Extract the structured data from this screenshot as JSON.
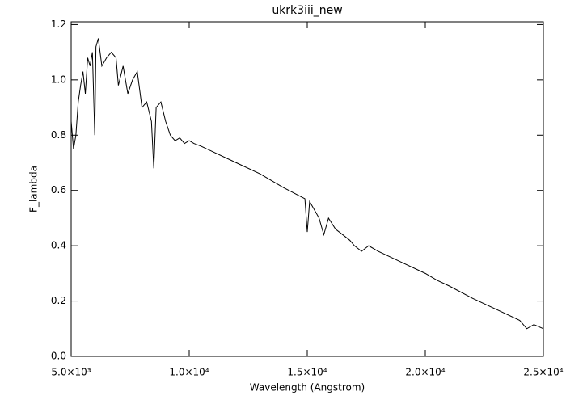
{
  "chart_data": {
    "type": "line",
    "title": "ukrk3iii_new",
    "xlabel": "Wavelength (Angstrom)",
    "ylabel": "F_lambda",
    "xlim": [
      5000,
      25000
    ],
    "xticks": [
      {
        "value": 5000,
        "label": "5.0×10³"
      },
      {
        "value": 10000,
        "label": "1.0×10⁴"
      },
      {
        "value": 15000,
        "label": "1.5×10⁴"
      },
      {
        "value": 20000,
        "label": "2.0×10⁴"
      },
      {
        "value": 25000,
        "label": "2.5×10⁴"
      }
    ],
    "ylim": [
      0,
      1.21
    ],
    "yticks": [
      {
        "value": 0,
        "label": "0.0"
      },
      0.2,
      0.4,
      0.6,
      0.8,
      {
        "value": 1,
        "label": "1.0"
      },
      1.2
    ],
    "color": "#000000",
    "x": [
      5000,
      5100,
      5200,
      5300,
      5400,
      5500,
      5600,
      5700,
      5800,
      5900,
      6000,
      6050,
      6150,
      6300,
      6500,
      6700,
      6900,
      7000,
      7200,
      7400,
      7600,
      7800,
      8000,
      8200,
      8400,
      8500,
      8600,
      8800,
      9000,
      9200,
      9400,
      9600,
      9800,
      10000,
      10200,
      10500,
      11000,
      12000,
      13000,
      14000,
      14900,
      15000,
      15100,
      15300,
      15500,
      15700,
      15900,
      16200,
      16500,
      16800,
      17000,
      17300,
      17600,
      18000,
      19000,
      20000,
      20500,
      21000,
      22000,
      23000,
      24000,
      24300,
      24600,
      25000
    ],
    "values": [
      0.85,
      0.75,
      0.8,
      0.92,
      0.98,
      1.03,
      0.95,
      1.08,
      1.05,
      1.1,
      0.8,
      1.12,
      1.15,
      1.05,
      1.08,
      1.1,
      1.08,
      0.98,
      1.05,
      0.95,
      1.0,
      1.03,
      0.9,
      0.92,
      0.85,
      0.68,
      0.9,
      0.92,
      0.85,
      0.8,
      0.78,
      0.79,
      0.77,
      0.78,
      0.77,
      0.76,
      0.74,
      0.7,
      0.66,
      0.61,
      0.57,
      0.45,
      0.56,
      0.53,
      0.5,
      0.44,
      0.5,
      0.46,
      0.44,
      0.42,
      0.4,
      0.38,
      0.4,
      0.38,
      0.34,
      0.3,
      0.275,
      0.255,
      0.21,
      0.17,
      0.13,
      0.1,
      0.115,
      0.1
    ]
  }
}
